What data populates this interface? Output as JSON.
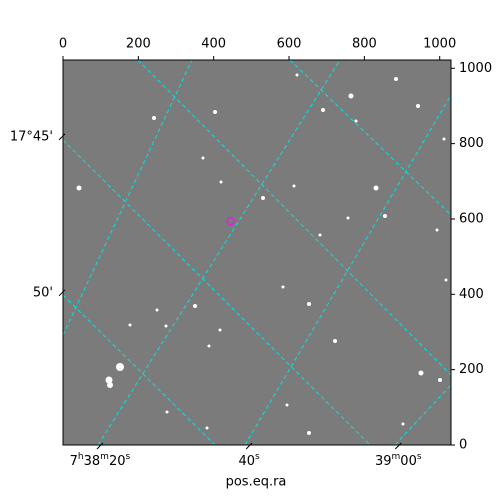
{
  "chart_data": {
    "type": "image",
    "x_label": "pos.eq.ra",
    "xlim": [
      0,
      1030
    ],
    "ylim": [
      0,
      1022
    ],
    "xticks": [
      0,
      200,
      400,
      600,
      800,
      1000
    ],
    "yticks": [
      0,
      200,
      400,
      600,
      800,
      1000
    ],
    "ra_ticks": [
      {
        "value": 98,
        "label": "7h38m20s"
      },
      {
        "value": 494,
        "label": "40s"
      },
      {
        "value": 890,
        "label": "39m00s"
      }
    ],
    "dec_ticks": [
      {
        "value": 818,
        "label": "17°45'"
      },
      {
        "value": 404,
        "label": "50'"
      }
    ],
    "marker": {
      "x": 445,
      "y": 594,
      "color": "#e020e0"
    }
  }
}
